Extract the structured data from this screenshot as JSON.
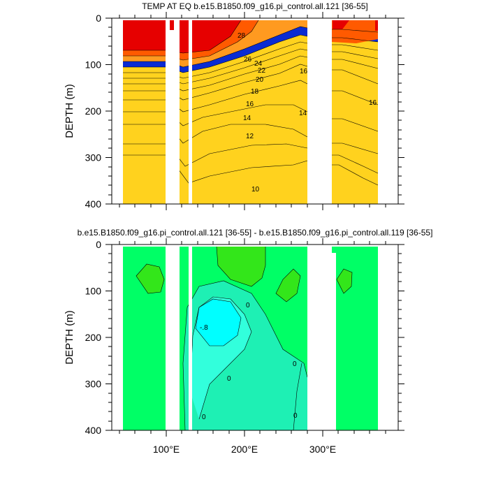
{
  "chart_data": [
    {
      "type": "contour",
      "title": "TEMP AT EQ b.e15.B1850.f09_g16.pi_control.all.121 [36-55]",
      "ylabel": "DEPTH (m)",
      "y_ticks": [
        "0",
        "100",
        "200",
        "300",
        "400"
      ],
      "ylim": [
        400,
        0
      ],
      "x_ticks": [],
      "xlim": [
        30,
        395
      ],
      "y_reversed": true,
      "land_gaps_lon": [
        [
          100,
          120
        ],
        [
          125,
          130
        ],
        [
          278,
          315
        ]
      ],
      "contour_labels": [
        "28",
        "26",
        "24",
        "22",
        "20",
        "18",
        "16",
        "14",
        "12",
        "10",
        "16",
        "14",
        "16"
      ],
      "fill_palette": [
        "#e60000",
        "#ff5a00",
        "#ff9a20",
        "#ffd21e",
        "#ffff3c",
        "#c8ff32",
        "#46e632",
        "#1ee68c",
        "#2ad2dc",
        "#35dcff",
        "#1ec8ff",
        "#1a9bff",
        "#1464f0",
        "#0a2bd2"
      ]
    },
    {
      "type": "contour",
      "title": "b.e15.B1850.f09_g16.pi_control.all.121 [36-55] - b.e15.B1850.f09_g16.pi_control.all.119 [36-55]",
      "ylabel": "DEPTH (m)",
      "y_ticks": [
        "0",
        "100",
        "200",
        "300",
        "400"
      ],
      "ylim": [
        400,
        0
      ],
      "x_ticks": [
        "100°E",
        "200°E",
        "300°E"
      ],
      "x_tick_values": [
        100,
        200,
        300
      ],
      "xlim": [
        30,
        395
      ],
      "y_reversed": true,
      "land_gaps_lon": [
        [
          100,
          120
        ],
        [
          125,
          130
        ],
        [
          278,
          315
        ]
      ],
      "contour_labels": [
        "0",
        "-.8",
        "0",
        "0",
        "0",
        "0",
        "0"
      ],
      "fill_palette": [
        "#00ff66",
        "#33e61a",
        "#1ef0b4",
        "#32ffdc",
        "#00ffff"
      ]
    }
  ]
}
